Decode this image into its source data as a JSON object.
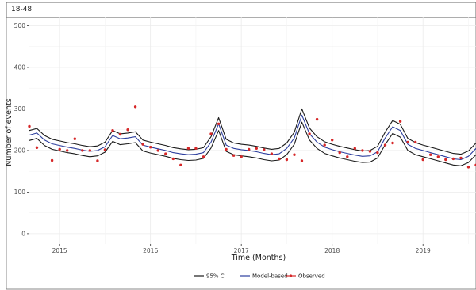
{
  "chart_data": {
    "type": "line",
    "panel_label": "18-48",
    "xlabel": "Time (Months)",
    "ylabel": "Number of events",
    "x_tick_labels": [
      "2015",
      "2016",
      "2017",
      "2018",
      "2019"
    ],
    "y_ticks": [
      0,
      100,
      200,
      300,
      400,
      500
    ],
    "ylim": [
      -25,
      520
    ],
    "grid": true,
    "legend_position": "bottom",
    "legend": [
      {
        "name": "95% CI",
        "color": "#1a1a1a",
        "kind": "line"
      },
      {
        "name": "Model-based",
        "color": "#2c3e9e",
        "kind": "line"
      },
      {
        "name": "Observed",
        "color": "#d62728",
        "kind": "point"
      }
    ],
    "colors": {
      "ci": "#1a1a1a",
      "model": "#2c3e9e",
      "observed": "#d62728"
    },
    "x_start": "2014-09",
    "x_end": "2019-09",
    "series": [
      {
        "name": "Model-based",
        "values": [
          237,
          242,
          225,
          216,
          212,
          208,
          205,
          201,
          198,
          200,
          209,
          236,
          228,
          230,
          233,
          213,
          208,
          204,
          200,
          195,
          192,
          190,
          191,
          195,
          220,
          264,
          213,
          205,
          202,
          200,
          197,
          193,
          190,
          192,
          205,
          230,
          285,
          240,
          220,
          208,
          202,
          197,
          193,
          189,
          186,
          187,
          197,
          230,
          257,
          248,
          215,
          205,
          200,
          195,
          190,
          185,
          180,
          178,
          186,
          205
        ]
      },
      {
        "name": "95% CI",
        "values_upper": [
          248,
          253,
          236,
          227,
          223,
          219,
          216,
          212,
          209,
          211,
          220,
          248,
          240,
          242,
          245,
          225,
          220,
          216,
          212,
          207,
          204,
          202,
          203,
          207,
          233,
          279,
          227,
          218,
          215,
          213,
          210,
          206,
          203,
          205,
          218,
          244,
          300,
          254,
          233,
          221,
          215,
          210,
          206,
          202,
          199,
          200,
          210,
          244,
          272,
          263,
          229,
          219,
          213,
          208,
          203,
          198,
          193,
          191,
          199,
          218
        ],
        "values_lower": [
          224,
          229,
          212,
          203,
          199,
          195,
          192,
          188,
          185,
          187,
          196,
          222,
          214,
          216,
          219,
          199,
          194,
          190,
          186,
          181,
          178,
          176,
          177,
          181,
          206,
          248,
          198,
          190,
          187,
          185,
          182,
          178,
          175,
          177,
          190,
          215,
          268,
          225,
          205,
          193,
          187,
          182,
          178,
          174,
          171,
          172,
          182,
          214,
          241,
          232,
          200,
          190,
          185,
          180,
          175,
          170,
          165,
          163,
          171,
          190
        ]
      },
      {
        "name": "Observed",
        "values": [
          258,
          207,
          null,
          176,
          203,
          200,
          228,
          200,
          200,
          175,
          202,
          248,
          239,
          250,
          305,
          215,
          208,
          200,
          192,
          180,
          165,
          205,
          205,
          185,
          240,
          264,
          203,
          188,
          185,
          203,
          205,
          202,
          192,
          180,
          178,
          190,
          175,
          240,
          275,
          213,
          225,
          195,
          185,
          205,
          200,
          198,
          195,
          213,
          218,
          270,
          220,
          220,
          178,
          190,
          185,
          178,
          180,
          182,
          160,
          165
        ]
      }
    ]
  }
}
